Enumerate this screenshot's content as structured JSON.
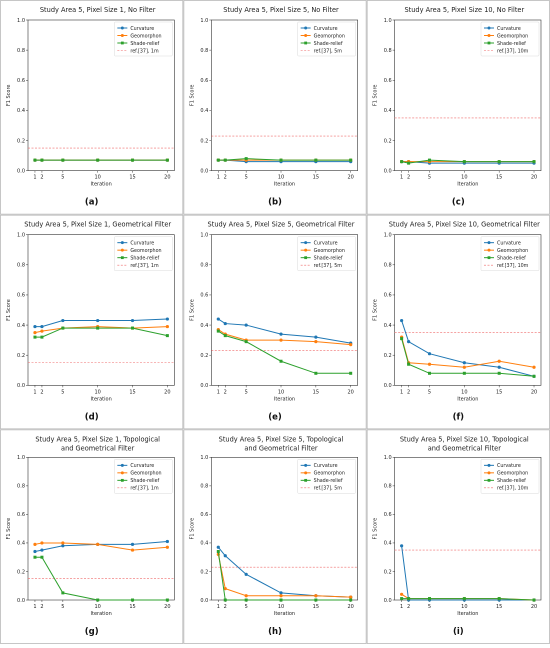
{
  "figure": {
    "iterations": [
      1,
      2,
      5,
      10,
      15,
      20
    ],
    "xlabel": "Iteration",
    "ylabel": "F1 Score",
    "ylim": [
      0,
      1.0
    ],
    "xticks": [
      1,
      2,
      5,
      10,
      15,
      20
    ],
    "yticks": [
      "0.0",
      "0.2",
      "0.4",
      "0.6",
      "0.8",
      "1.0"
    ],
    "legend_position": "top-right",
    "colors": {
      "curvature": "#1f77b4",
      "geomorphon": "#ff7f0e",
      "shade_relief": "#2ca02c",
      "reference": "#ef6b6b"
    }
  },
  "chart_data": [
    {
      "type": "line",
      "panel": "(a)",
      "title": [
        "Study Area 5, Pixel Size 1, No Filter"
      ],
      "x": [
        1,
        2,
        5,
        10,
        15,
        20
      ],
      "series": [
        {
          "name": "Curvature",
          "values": [
            0.07,
            0.07,
            0.07,
            0.07,
            0.07,
            0.07
          ]
        },
        {
          "name": "Geomorphon",
          "values": [
            0.07,
            0.07,
            0.07,
            0.07,
            0.07,
            0.07
          ]
        },
        {
          "name": "Shade-relief",
          "values": [
            0.07,
            0.07,
            0.07,
            0.07,
            0.07,
            0.07
          ]
        }
      ],
      "reference": {
        "name": "ref.[37], 1m",
        "value": 0.15
      }
    },
    {
      "type": "line",
      "panel": "(b)",
      "title": [
        "Study Area 5, Pixel Size 5, No Filter"
      ],
      "x": [
        1,
        2,
        5,
        10,
        15,
        20
      ],
      "series": [
        {
          "name": "Curvature",
          "values": [
            0.07,
            0.07,
            0.06,
            0.06,
            0.06,
            0.06
          ]
        },
        {
          "name": "Geomorphon",
          "values": [
            0.07,
            0.07,
            0.07,
            0.07,
            0.07,
            0.07
          ]
        },
        {
          "name": "Shade-relief",
          "values": [
            0.07,
            0.07,
            0.08,
            0.07,
            0.07,
            0.07
          ]
        }
      ],
      "reference": {
        "name": "ref.[37], 5m",
        "value": 0.23
      }
    },
    {
      "type": "line",
      "panel": "(c)",
      "title": [
        "Study Area 5, Pixel Size 10, No Filter"
      ],
      "x": [
        1,
        2,
        5,
        10,
        15,
        20
      ],
      "series": [
        {
          "name": "Curvature",
          "values": [
            0.06,
            0.06,
            0.05,
            0.05,
            0.05,
            0.05
          ]
        },
        {
          "name": "Geomorphon",
          "values": [
            0.06,
            0.06,
            0.06,
            0.06,
            0.06,
            0.06
          ]
        },
        {
          "name": "Shade-relief",
          "values": [
            0.06,
            0.05,
            0.07,
            0.06,
            0.06,
            0.06
          ]
        }
      ],
      "reference": {
        "name": "ref.[37], 10m",
        "value": 0.35
      }
    },
    {
      "type": "line",
      "panel": "(d)",
      "title": [
        "Study Area 5, Pixel Size 1, Geometrical Filter"
      ],
      "x": [
        1,
        2,
        5,
        10,
        15,
        20
      ],
      "series": [
        {
          "name": "Curvature",
          "values": [
            0.39,
            0.39,
            0.43,
            0.43,
            0.43,
            0.44
          ]
        },
        {
          "name": "Geomorphon",
          "values": [
            0.35,
            0.36,
            0.38,
            0.39,
            0.38,
            0.39
          ]
        },
        {
          "name": "Shade-relief",
          "values": [
            0.32,
            0.32,
            0.38,
            0.38,
            0.38,
            0.33
          ]
        }
      ],
      "reference": {
        "name": "ref.[37], 1m",
        "value": 0.15
      }
    },
    {
      "type": "line",
      "panel": "(e)",
      "title": [
        "Study Area 5, Pixel Size 5, Geometrical Filter"
      ],
      "x": [
        1,
        2,
        5,
        10,
        15,
        20
      ],
      "series": [
        {
          "name": "Curvature",
          "values": [
            0.44,
            0.41,
            0.4,
            0.34,
            0.32,
            0.28
          ]
        },
        {
          "name": "Geomorphon",
          "values": [
            0.37,
            0.34,
            0.3,
            0.3,
            0.29,
            0.27
          ]
        },
        {
          "name": "Shade-relief",
          "values": [
            0.36,
            0.33,
            0.29,
            0.16,
            0.08,
            0.08
          ]
        }
      ],
      "reference": {
        "name": "ref.[37], 5m",
        "value": 0.23
      }
    },
    {
      "type": "line",
      "panel": "(f)",
      "title": [
        "Study Area 5, Pixel Size 10, Geometrical Filter"
      ],
      "x": [
        1,
        2,
        5,
        10,
        15,
        20
      ],
      "series": [
        {
          "name": "Curvature",
          "values": [
            0.43,
            0.29,
            0.21,
            0.15,
            0.12,
            0.06
          ]
        },
        {
          "name": "Geomorphon",
          "values": [
            0.32,
            0.15,
            0.14,
            0.12,
            0.16,
            0.12
          ]
        },
        {
          "name": "Shade-relief",
          "values": [
            0.31,
            0.14,
            0.08,
            0.08,
            0.08,
            0.06
          ]
        }
      ],
      "reference": {
        "name": "ref.[37], 10m",
        "value": 0.35
      }
    },
    {
      "type": "line",
      "panel": "(g)",
      "title": [
        "Study Area 5, Pixel Size 1, Topological",
        "and Geometrical Filter"
      ],
      "x": [
        1,
        2,
        5,
        10,
        15,
        20
      ],
      "series": [
        {
          "name": "Curvature",
          "values": [
            0.34,
            0.35,
            0.38,
            0.39,
            0.39,
            0.41
          ]
        },
        {
          "name": "Geomorphon",
          "values": [
            0.39,
            0.4,
            0.4,
            0.39,
            0.35,
            0.37
          ]
        },
        {
          "name": "Shade-relief",
          "values": [
            0.3,
            0.3,
            0.05,
            0.0,
            0.0,
            0.0
          ]
        }
      ],
      "reference": {
        "name": "ref.[37], 1m",
        "value": 0.15
      }
    },
    {
      "type": "line",
      "panel": "(h)",
      "title": [
        "Study Area 5, Pixel Size 5, Topological",
        "and Geometrical Filter"
      ],
      "x": [
        1,
        2,
        5,
        10,
        15,
        20
      ],
      "series": [
        {
          "name": "Curvature",
          "values": [
            0.37,
            0.31,
            0.18,
            0.05,
            0.03,
            0.02
          ]
        },
        {
          "name": "Geomorphon",
          "values": [
            0.32,
            0.08,
            0.03,
            0.03,
            0.03,
            0.02
          ]
        },
        {
          "name": "Shade-relief",
          "values": [
            0.34,
            0.0,
            0.0,
            0.0,
            0.0,
            0.0
          ]
        }
      ],
      "reference": {
        "name": "ref.[37], 5m",
        "value": 0.23
      }
    },
    {
      "type": "line",
      "panel": "(i)",
      "title": [
        "Study Area 5, Pixel Size 10, Topological",
        "and Geometrical Filter"
      ],
      "x": [
        1,
        2,
        5,
        10,
        15,
        20
      ],
      "series": [
        {
          "name": "Curvature",
          "values": [
            0.38,
            0.0,
            0.0,
            0.0,
            0.0,
            0.0
          ]
        },
        {
          "name": "Geomorphon",
          "values": [
            0.04,
            0.01,
            0.01,
            0.01,
            0.01,
            0.0
          ]
        },
        {
          "name": "Shade-relief",
          "values": [
            0.01,
            0.01,
            0.01,
            0.01,
            0.01,
            0.0
          ]
        }
      ],
      "reference": {
        "name": "ref.[37], 10m",
        "value": 0.35
      }
    }
  ]
}
